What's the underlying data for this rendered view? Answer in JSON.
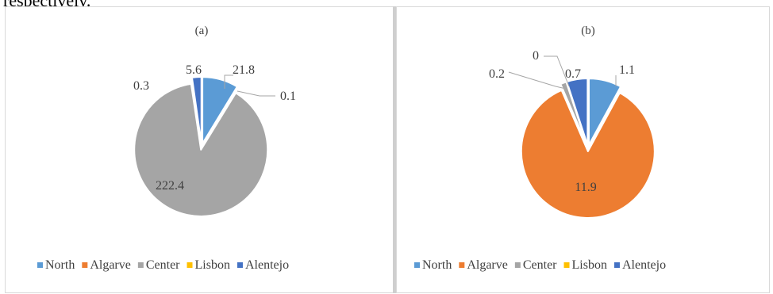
{
  "page": {
    "top_text": "respectively."
  },
  "chart_data": [
    {
      "type": "pie",
      "title": "(a)",
      "categories": [
        "North",
        "Algarve",
        "Center",
        "Lisbon",
        "Alentejo"
      ],
      "values": [
        21.8,
        0.1,
        222.4,
        0.3,
        5.6
      ],
      "colors": [
        "#5b9bd5",
        "#ed7d31",
        "#a5a5a5",
        "#ffc000",
        "#4472c4"
      ],
      "data_labels": [
        "21.8",
        "0.1",
        "222.4",
        "0.3",
        "5.6"
      ],
      "legend_position": "bottom",
      "exploded": true
    },
    {
      "type": "pie",
      "title": "(b)",
      "categories": [
        "North",
        "Algarve",
        "Center",
        "Lisbon",
        "Alentejo"
      ],
      "values": [
        1.1,
        11.9,
        0.2,
        0,
        0.7
      ],
      "colors": [
        "#5b9bd5",
        "#ed7d31",
        "#a5a5a5",
        "#ffc000",
        "#4472c4"
      ],
      "data_labels": [
        "1.1",
        "11.9",
        "0.2",
        "0",
        "0.7"
      ],
      "legend_position": "bottom",
      "exploded": true
    }
  ]
}
